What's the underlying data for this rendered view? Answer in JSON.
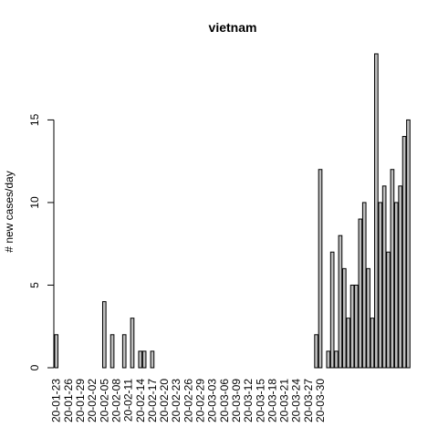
{
  "chart_data": {
    "type": "bar",
    "title": "vietnam",
    "xlabel": "",
    "ylabel": "# new cases/day",
    "ylim": [
      0,
      19
    ],
    "yticks": [
      0,
      5,
      10,
      15
    ],
    "x_tick_labels": [
      "20-01-23",
      "20-01-26",
      "20-01-29",
      "20-02-02",
      "20-02-05",
      "20-02-08",
      "20-02-11",
      "20-02-14",
      "20-02-17",
      "20-02-20",
      "20-02-23",
      "20-02-26",
      "20-02-29",
      "20-03-03",
      "20-03-06",
      "20-03-09",
      "20-03-12",
      "20-03-15",
      "20-03-18",
      "20-03-21",
      "20-03-24",
      "20-03-27",
      "20-03-30"
    ],
    "x_tick_every": 3,
    "values": [
      2,
      0,
      0,
      0,
      0,
      0,
      0,
      0,
      0,
      0,
      0,
      0,
      4,
      0,
      2,
      0,
      0,
      2,
      0,
      3,
      0,
      1,
      1,
      0,
      1,
      0,
      0,
      0,
      0,
      0,
      0,
      0,
      0,
      0,
      0,
      0,
      0,
      0,
      0,
      0,
      0,
      0,
      0,
      0,
      0,
      0,
      0,
      0,
      0,
      0,
      0,
      0,
      0,
      0,
      0,
      0,
      0,
      0,
      0,
      0,
      0,
      0,
      0,
      0,
      0,
      2,
      12,
      0,
      1,
      7,
      1,
      8,
      6,
      3,
      5,
      5,
      9,
      10,
      6,
      3,
      19,
      10,
      11,
      7,
      12,
      10,
      11,
      14,
      15
    ],
    "grid": false
  }
}
